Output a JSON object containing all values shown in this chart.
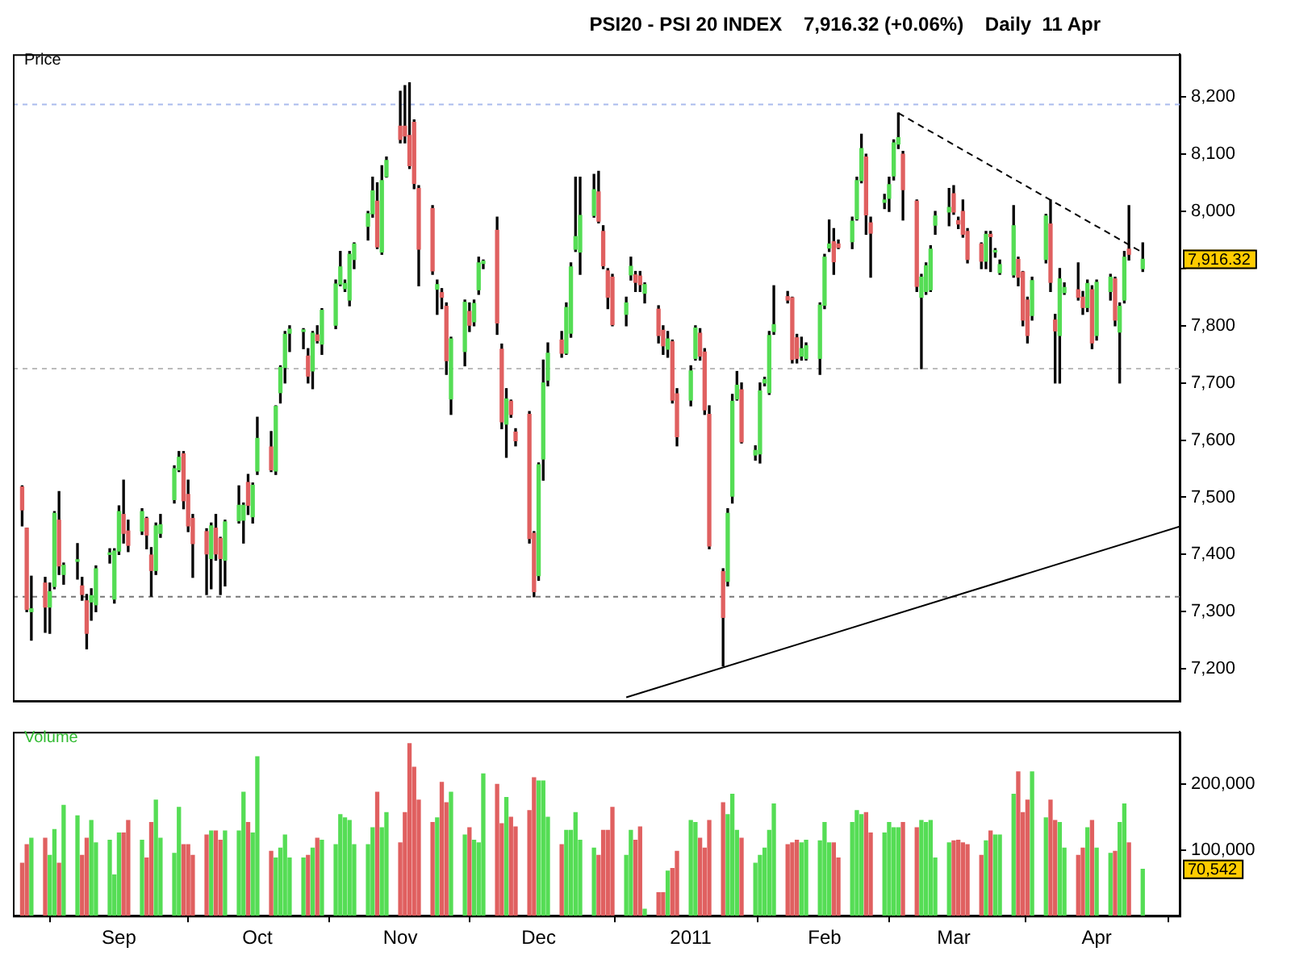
{
  "chart_data": [
    {
      "type": "candlestick",
      "title": "PSI20 - PSI 20 INDEX    7,916.32 (+0.06%)    Daily  11 Apr",
      "ylabel": "Price",
      "x": [
        "2010-08-11",
        "2010-08-12",
        "2010-08-13",
        "2010-08-16",
        "2010-08-17",
        "2010-08-18",
        "2010-08-19",
        "2010-08-20",
        "2010-08-23",
        "2010-08-24",
        "2010-08-25",
        "2010-08-26",
        "2010-08-27",
        "2010-08-30",
        "2010-08-31",
        "2010-09-01",
        "2010-09-02",
        "2010-09-03",
        "2010-09-06",
        "2010-09-07",
        "2010-09-08",
        "2010-09-09",
        "2010-09-10",
        "2010-09-13",
        "2010-09-14",
        "2010-09-15",
        "2010-09-16",
        "2010-09-17",
        "2010-09-20",
        "2010-09-21",
        "2010-09-22",
        "2010-09-23",
        "2010-09-24",
        "2010-09-27",
        "2010-09-28",
        "2010-09-29",
        "2010-09-30",
        "2010-10-01",
        "2010-10-04",
        "2010-10-05",
        "2010-10-06",
        "2010-10-07",
        "2010-10-08",
        "2010-10-11",
        "2010-10-12",
        "2010-10-13",
        "2010-10-14",
        "2010-10-15",
        "2010-10-18",
        "2010-10-19",
        "2010-10-20",
        "2010-10-21",
        "2010-10-22",
        "2010-10-25",
        "2010-10-26",
        "2010-10-27",
        "2010-10-28",
        "2010-10-29",
        "2010-11-01",
        "2010-11-02",
        "2010-11-03",
        "2010-11-04",
        "2010-11-05",
        "2010-11-08",
        "2010-11-09",
        "2010-11-10",
        "2010-11-11",
        "2010-11-12",
        "2010-11-15",
        "2010-11-16",
        "2010-11-17",
        "2010-11-18",
        "2010-11-19",
        "2010-11-22",
        "2010-11-23",
        "2010-11-24",
        "2010-11-25",
        "2010-11-26",
        "2010-11-29",
        "2010-11-30",
        "2010-12-01",
        "2010-12-02",
        "2010-12-03",
        "2010-12-06",
        "2010-12-07",
        "2010-12-08",
        "2010-12-09",
        "2010-12-10",
        "2010-12-13",
        "2010-12-14",
        "2010-12-15",
        "2010-12-16",
        "2010-12-17",
        "2010-12-20",
        "2010-12-21",
        "2010-12-22",
        "2010-12-23",
        "2010-12-24",
        "2010-12-27",
        "2010-12-28",
        "2010-12-29",
        "2010-12-30",
        "2010-12-31",
        "2011-01-03",
        "2011-01-04",
        "2011-01-05",
        "2011-01-06",
        "2011-01-07",
        "2011-01-10",
        "2011-01-11",
        "2011-01-12",
        "2011-01-13",
        "2011-01-14",
        "2011-01-17",
        "2011-01-18",
        "2011-01-19",
        "2011-01-20",
        "2011-01-21",
        "2011-01-24",
        "2011-01-25",
        "2011-01-26",
        "2011-01-27",
        "2011-01-28",
        "2011-01-31",
        "2011-02-01",
        "2011-02-02",
        "2011-02-03",
        "2011-02-04",
        "2011-02-07",
        "2011-02-08",
        "2011-02-09",
        "2011-02-10",
        "2011-02-11",
        "2011-02-14",
        "2011-02-15",
        "2011-02-16",
        "2011-02-17",
        "2011-02-18",
        "2011-02-21",
        "2011-02-22",
        "2011-02-23",
        "2011-02-24",
        "2011-02-25",
        "2011-02-28",
        "2011-03-01",
        "2011-03-02",
        "2011-03-03",
        "2011-03-04",
        "2011-03-07",
        "2011-03-08",
        "2011-03-09",
        "2011-03-10",
        "2011-03-11",
        "2011-03-14",
        "2011-03-15",
        "2011-03-16",
        "2011-03-17",
        "2011-03-18",
        "2011-03-21",
        "2011-03-22",
        "2011-03-23",
        "2011-03-24",
        "2011-03-25",
        "2011-03-28",
        "2011-03-29",
        "2011-03-30",
        "2011-03-31",
        "2011-04-01",
        "2011-04-04",
        "2011-04-05",
        "2011-04-06",
        "2011-04-07",
        "2011-04-08",
        "2011-04-11"
      ],
      "ohlc": [
        [
          7518,
          7520,
          7450,
          7478
        ],
        [
          7446,
          7446,
          7300,
          7304
        ],
        [
          7300,
          7362,
          7250,
          7305
        ],
        [
          7350,
          7360,
          7264,
          7308
        ],
        [
          7308,
          7350,
          7262,
          7335
        ],
        [
          7344,
          7475,
          7340,
          7472
        ],
        [
          7460,
          7510,
          7365,
          7380
        ],
        [
          7365,
          7385,
          7348,
          7381
        ],
        [
          7388,
          7419,
          7357,
          7388
        ],
        [
          7345,
          7360,
          7320,
          7330
        ],
        [
          7319,
          7330,
          7235,
          7262
        ],
        [
          7317,
          7340,
          7285,
          7328
        ],
        [
          7312,
          7380,
          7300,
          7375
        ],
        [
          7400,
          7410,
          7385,
          7402
        ],
        [
          7322,
          7410,
          7315,
          7406
        ],
        [
          7406,
          7485,
          7400,
          7475
        ],
        [
          7470,
          7530,
          7420,
          7437
        ],
        [
          7441,
          7460,
          7405,
          7416
        ],
        [
          7441,
          7480,
          7435,
          7475
        ],
        [
          7463,
          7465,
          7410,
          7434
        ],
        [
          7399,
          7412,
          7327,
          7372
        ],
        [
          7372,
          7455,
          7365,
          7450
        ],
        [
          7437,
          7470,
          7430,
          7452
        ],
        [
          7496,
          7555,
          7490,
          7550
        ],
        [
          7548,
          7580,
          7545,
          7570
        ],
        [
          7576,
          7580,
          7480,
          7494
        ],
        [
          7505,
          7530,
          7440,
          7450
        ],
        [
          7463,
          7470,
          7360,
          7419
        ],
        [
          7440,
          7445,
          7330,
          7401
        ],
        [
          7393,
          7455,
          7340,
          7450
        ],
        [
          7446,
          7470,
          7390,
          7401
        ],
        [
          7428,
          7430,
          7330,
          7393
        ],
        [
          7390,
          7460,
          7345,
          7457
        ],
        [
          7459,
          7520,
          7455,
          7486
        ],
        [
          7460,
          7490,
          7420,
          7486
        ],
        [
          7526,
          7540,
          7470,
          7486
        ],
        [
          7466,
          7525,
          7455,
          7521
        ],
        [
          7546,
          7640,
          7540,
          7603
        ],
        [
          7588,
          7615,
          7545,
          7548
        ],
        [
          7546,
          7660,
          7540,
          7659
        ],
        [
          7683,
          7730,
          7665,
          7727
        ],
        [
          7727,
          7790,
          7700,
          7785
        ],
        [
          7787,
          7800,
          7755,
          7794
        ],
        [
          7790,
          7795,
          7760,
          7792
        ],
        [
          7747,
          7760,
          7700,
          7712
        ],
        [
          7721,
          7790,
          7690,
          7787
        ],
        [
          7784,
          7800,
          7770,
          7774
        ],
        [
          7768,
          7830,
          7750,
          7827
        ],
        [
          7801,
          7880,
          7795,
          7873
        ],
        [
          7873,
          7930,
          7870,
          7903
        ],
        [
          7865,
          7880,
          7860,
          7874
        ],
        [
          7845,
          7930,
          7835,
          7925
        ],
        [
          7916,
          7945,
          7900,
          7943
        ],
        [
          7974,
          8000,
          7950,
          7996
        ],
        [
          7996,
          8060,
          7990,
          8036
        ],
        [
          8018,
          8050,
          7935,
          7938
        ],
        [
          7929,
          8080,
          7925,
          8054
        ],
        [
          8061,
          8095,
          8060,
          8089
        ],
        [
          8149,
          8210,
          8120,
          8126
        ],
        [
          8149,
          8220,
          8120,
          8132
        ],
        [
          8133,
          8225,
          8075,
          8080
        ],
        [
          8156,
          8160,
          8040,
          8049
        ],
        [
          8040,
          8045,
          7870,
          7934
        ],
        [
          8005,
          8010,
          7890,
          7896
        ],
        [
          7864,
          7880,
          7820,
          7872
        ],
        [
          7858,
          7865,
          7830,
          7850
        ],
        [
          7834,
          7840,
          7715,
          7739
        ],
        [
          7672,
          7780,
          7645,
          7777
        ],
        [
          7755,
          7845,
          7730,
          7841
        ],
        [
          7825,
          7840,
          7790,
          7801
        ],
        [
          7807,
          7845,
          7800,
          7839
        ],
        [
          7863,
          7920,
          7855,
          7910
        ],
        [
          7909,
          7915,
          7900,
          7913
        ],
        [
          7967,
          7990,
          7785,
          7805
        ],
        [
          7759,
          7768,
          7620,
          7632
        ],
        [
          7628,
          7690,
          7570,
          7672
        ],
        [
          7668,
          7670,
          7640,
          7645
        ],
        [
          7614,
          7620,
          7590,
          7599
        ],
        [
          7645,
          7650,
          7420,
          7428
        ],
        [
          7437,
          7440,
          7326,
          7335
        ],
        [
          7363,
          7560,
          7355,
          7557
        ],
        [
          7567,
          7740,
          7530,
          7700
        ],
        [
          7705,
          7770,
          7695,
          7752
        ],
        [
          7775,
          7790,
          7745,
          7752
        ],
        [
          7752,
          7840,
          7750,
          7832
        ],
        [
          7787,
          7910,
          7780,
          7903
        ],
        [
          7934,
          8060,
          7930,
          7956
        ],
        [
          7929,
          8060,
          7890,
          7993
        ],
        [
          7993,
          8065,
          7990,
          8038
        ],
        [
          8034,
          8070,
          7980,
          7983
        ],
        [
          7965,
          7975,
          7900,
          7905
        ],
        [
          7896,
          7900,
          7830,
          7850
        ],
        [
          7885,
          7890,
          7800,
          7802
        ],
        [
          7820,
          7850,
          7800,
          7840
        ],
        [
          7889,
          7920,
          7880,
          7904
        ],
        [
          7889,
          7895,
          7860,
          7876
        ],
        [
          7887,
          7895,
          7860,
          7872
        ],
        [
          7857,
          7875,
          7840,
          7872
        ],
        [
          7829,
          7835,
          7770,
          7783
        ],
        [
          7792,
          7800,
          7750,
          7765
        ],
        [
          7759,
          7790,
          7745,
          7777
        ],
        [
          7772,
          7775,
          7665,
          7670
        ],
        [
          7681,
          7690,
          7590,
          7606
        ],
        [
          7670,
          7730,
          7660,
          7721
        ],
        [
          7743,
          7800,
          7740,
          7796
        ],
        [
          7787,
          7795,
          7740,
          7747
        ],
        [
          7754,
          7760,
          7645,
          7653
        ],
        [
          7645,
          7660,
          7410,
          7415
        ],
        [
          7370,
          7375,
          7205,
          7290
        ],
        [
          7353,
          7480,
          7345,
          7472
        ],
        [
          7502,
          7680,
          7490,
          7668
        ],
        [
          7672,
          7720,
          7670,
          7696
        ],
        [
          7688,
          7700,
          7595,
          7597
        ],
        [
          7574,
          7590,
          7565,
          7582
        ],
        [
          7576,
          7700,
          7560,
          7686
        ],
        [
          7700,
          7710,
          7695,
          7706
        ],
        [
          7683,
          7790,
          7680,
          7783
        ],
        [
          7790,
          7870,
          7785,
          7802
        ],
        [
          7851,
          7860,
          7840,
          7845
        ],
        [
          7849,
          7850,
          7735,
          7741
        ],
        [
          7779,
          7785,
          7735,
          7743
        ],
        [
          7747,
          7780,
          7740,
          7760
        ],
        [
          7743,
          7770,
          7740,
          7765
        ],
        [
          7743,
          7840,
          7715,
          7836
        ],
        [
          7836,
          7925,
          7830,
          7920
        ],
        [
          7936,
          7985,
          7930,
          7943
        ],
        [
          7947,
          7970,
          7890,
          7912
        ],
        [
          7943,
          7950,
          7935,
          7937
        ],
        [
          7947,
          7990,
          7935,
          7983
        ],
        [
          7987,
          8060,
          7985,
          8054
        ],
        [
          8054,
          8135,
          8050,
          8110
        ],
        [
          8095,
          8100,
          7960,
          7994
        ],
        [
          7980,
          7990,
          7885,
          7962
        ],
        [
          8016,
          8030,
          8005,
          8020
        ],
        [
          8023,
          8060,
          8000,
          8047
        ],
        [
          8062,
          8125,
          8055,
          8120
        ],
        [
          8118,
          8172,
          8110,
          8129
        ],
        [
          8100,
          8105,
          7985,
          8038
        ],
        [
          8018,
          8020,
          7860,
          7869
        ],
        [
          7850,
          7890,
          7725,
          7885
        ],
        [
          7860,
          7910,
          7855,
          7905
        ],
        [
          7863,
          7940,
          7860,
          7934
        ],
        [
          7976,
          8000,
          7960,
          7992
        ],
        [
          7999,
          8040,
          7975,
          8007
        ],
        [
          8031,
          8045,
          7995,
          7999
        ],
        [
          7984,
          7990,
          7970,
          7978
        ],
        [
          8000,
          8020,
          7955,
          7960
        ],
        [
          7965,
          7970,
          7910,
          7916
        ],
        [
          7943,
          7945,
          7900,
          7913
        ],
        [
          7913,
          7965,
          7900,
          7960
        ],
        [
          7960,
          7965,
          7895,
          7956
        ],
        [
          7929,
          7935,
          7920,
          7929
        ],
        [
          7893,
          7915,
          7890,
          7907
        ],
        [
          7889,
          8010,
          7885,
          7975
        ],
        [
          7916,
          7920,
          7870,
          7885
        ],
        [
          7894,
          7895,
          7800,
          7810
        ],
        [
          7845,
          7850,
          7770,
          7783
        ],
        [
          7818,
          7885,
          7810,
          7879
        ],
        [
          7916,
          7995,
          7910,
          7992
        ],
        [
          7978,
          8020,
          7860,
          7876
        ],
        [
          7810,
          7820,
          7700,
          7791
        ],
        [
          7783,
          7900,
          7700,
          7882
        ],
        [
          7858,
          7875,
          7855,
          7867
        ],
        [
          7863,
          7910,
          7845,
          7850
        ],
        [
          7850,
          7860,
          7820,
          7832
        ],
        [
          7832,
          7880,
          7825,
          7874
        ],
        [
          7863,
          7870,
          7760,
          7770
        ],
        [
          7783,
          7880,
          7775,
          7876
        ],
        [
          7860,
          7890,
          7845,
          7885
        ],
        [
          7882,
          7885,
          7800,
          7810
        ],
        [
          7789,
          7840,
          7700,
          7834
        ],
        [
          7845,
          7930,
          7840,
          7920
        ],
        [
          7934,
          8010,
          7915,
          7925
        ],
        [
          7900,
          7945,
          7895,
          7916.32
        ]
      ],
      "colors": [
        "#e06060",
        "#e06060",
        "#55dd55",
        "#e06060",
        "#55dd55",
        "#55dd55",
        "#e06060",
        "#55dd55",
        "#55dd55",
        "#e06060",
        "#e06060",
        "#55dd55",
        "#55dd55",
        "#55dd55",
        "#55dd55",
        "#55dd55",
        "#e06060",
        "#e06060",
        "#55dd55",
        "#e06060",
        "#e06060",
        "#55dd55",
        "#55dd55",
        "#55dd55",
        "#55dd55",
        "#e06060",
        "#e06060",
        "#e06060",
        "#e06060",
        "#55dd55",
        "#e06060",
        "#e06060",
        "#55dd55",
        "#55dd55",
        "#55dd55",
        "#e06060",
        "#55dd55",
        "#55dd55",
        "#e06060",
        "#55dd55",
        "#55dd55",
        "#55dd55",
        "#55dd55",
        "#55dd55",
        "#e06060",
        "#55dd55",
        "#e06060",
        "#55dd55",
        "#55dd55",
        "#55dd55",
        "#55dd55",
        "#55dd55",
        "#55dd55",
        "#55dd55",
        "#55dd55",
        "#e06060",
        "#55dd55",
        "#55dd55",
        "#e06060",
        "#e06060",
        "#e06060",
        "#e06060",
        "#e06060",
        "#e06060",
        "#55dd55",
        "#e06060",
        "#e06060",
        "#55dd55",
        "#55dd55",
        "#e06060",
        "#55dd55",
        "#55dd55",
        "#55dd55",
        "#e06060",
        "#e06060",
        "#55dd55",
        "#e06060",
        "#e06060",
        "#e06060",
        "#e06060",
        "#55dd55",
        "#55dd55",
        "#55dd55",
        "#e06060",
        "#55dd55",
        "#55dd55",
        "#55dd55",
        "#55dd55",
        "#55dd55",
        "#e06060",
        "#e06060",
        "#e06060",
        "#e06060",
        "#55dd55",
        "#55dd55",
        "#e06060",
        "#e06060",
        "#55dd55",
        "#e06060",
        "#e06060",
        "#55dd55",
        "#e06060",
        "#e06060",
        "#55dd55",
        "#55dd55",
        "#e06060",
        "#e06060",
        "#e06060",
        "#e06060",
        "#55dd55",
        "#55dd55",
        "#55dd55",
        "#e06060",
        "#55dd55",
        "#55dd55",
        "#55dd55",
        "#55dd55",
        "#55dd55",
        "#e06060",
        "#e06060",
        "#e06060",
        "#55dd55",
        "#55dd55",
        "#55dd55",
        "#55dd55",
        "#55dd55",
        "#e06060",
        "#e06060",
        "#55dd55",
        "#55dd55",
        "#55dd55",
        "#e06060",
        "#e06060",
        "#55dd55",
        "#55dd55",
        "#55dd55",
        "#55dd55",
        "#e06060",
        "#e06060",
        "#55dd55",
        "#55dd55",
        "#55dd55",
        "#55dd55",
        "#55dd55",
        "#e06060",
        "#e06060",
        "#e06060",
        "#e06060",
        "#e06060",
        "#55dd55",
        "#e06060",
        "#55dd55",
        "#55dd55",
        "#55dd55",
        "#e06060",
        "#e06060",
        "#e06060",
        "#55dd55",
        "#55dd55",
        "#e06060",
        "#e06060",
        "#55dd55",
        "#55dd55",
        "#e06060",
        "#e06060",
        "#55dd55",
        "#e06060",
        "#55dd55",
        "#55dd55",
        "#e06060",
        "#55dd55",
        "#55dd55",
        "#e06060",
        "#55dd55"
      ],
      "series": [
        {
          "type": "line",
          "x": [
            "2010-12-20",
            "2011-04-19"
          ],
          "values": [
            7150,
            7449
          ],
          "color": "#000000",
          "line_style": "solid"
        },
        {
          "type": "line",
          "x": [
            "2011-02-17",
            "2011-04-11"
          ],
          "values": [
            8172,
            7928
          ],
          "color": "#000000",
          "line_style": "dashed"
        }
      ],
      "ref_lines": [
        {
          "axis": "y",
          "value": 8187,
          "color": "#aabbee",
          "line_style": "dashed"
        },
        {
          "axis": "y",
          "value": 7725,
          "color": "#bbbbbb",
          "line_style": "dashed"
        },
        {
          "axis": "y",
          "value": 7326,
          "color": "#777777",
          "line_style": "dashed"
        }
      ],
      "annotations": [
        {
          "text": "7,916.32",
          "x": "2011-04-11",
          "y": 7916.32
        }
      ],
      "xlim": [
        "2010-08-09",
        "2011-04-19"
      ],
      "ylim": [
        7144,
        8275
      ],
      "yticks": [
        {
          "value": 7200,
          "label": "7,200"
        },
        {
          "value": 7300,
          "label": "7,300"
        },
        {
          "value": 7400,
          "label": "7,400"
        },
        {
          "value": 7500,
          "label": "7,500"
        },
        {
          "value": 7600,
          "label": "7,600"
        },
        {
          "value": 7700,
          "label": "7,700"
        },
        {
          "value": 7800,
          "label": "7,800"
        },
        {
          "value": 7900,
          "label": null
        },
        {
          "value": 8000,
          "label": "8,000"
        },
        {
          "value": 8100,
          "label": "8,100"
        },
        {
          "value": 8200,
          "label": "8,200"
        }
      ],
      "tick_labels": "y"
    },
    {
      "type": "bar",
      "ylabel": "Volume",
      "x": [
        "2010-08-11",
        "2010-08-12",
        "2010-08-13",
        "2010-08-16",
        "2010-08-17",
        "2010-08-18",
        "2010-08-19",
        "2010-08-20",
        "2010-08-23",
        "2010-08-24",
        "2010-08-25",
        "2010-08-26",
        "2010-08-27",
        "2010-08-30",
        "2010-08-31",
        "2010-09-01",
        "2010-09-02",
        "2010-09-03",
        "2010-09-06",
        "2010-09-07",
        "2010-09-08",
        "2010-09-09",
        "2010-09-10",
        "2010-09-13",
        "2010-09-14",
        "2010-09-15",
        "2010-09-16",
        "2010-09-17",
        "2010-09-20",
        "2010-09-21",
        "2010-09-22",
        "2010-09-23",
        "2010-09-24",
        "2010-09-27",
        "2010-09-28",
        "2010-09-29",
        "2010-09-30",
        "2010-10-01",
        "2010-10-04",
        "2010-10-05",
        "2010-10-06",
        "2010-10-07",
        "2010-10-08",
        "2010-10-11",
        "2010-10-12",
        "2010-10-13",
        "2010-10-14",
        "2010-10-15",
        "2010-10-18",
        "2010-10-19",
        "2010-10-20",
        "2010-10-21",
        "2010-10-22",
        "2010-10-25",
        "2010-10-26",
        "2010-10-27",
        "2010-10-28",
        "2010-10-29",
        "2010-11-01",
        "2010-11-02",
        "2010-11-03",
        "2010-11-04",
        "2010-11-05",
        "2010-11-08",
        "2010-11-09",
        "2010-11-10",
        "2010-11-11",
        "2010-11-12",
        "2010-11-15",
        "2010-11-16",
        "2010-11-17",
        "2010-11-18",
        "2010-11-19",
        "2010-11-22",
        "2010-11-23",
        "2010-11-24",
        "2010-11-25",
        "2010-11-26",
        "2010-11-29",
        "2010-11-30",
        "2010-12-01",
        "2010-12-02",
        "2010-12-03",
        "2010-12-06",
        "2010-12-07",
        "2010-12-08",
        "2010-12-09",
        "2010-12-10",
        "2010-12-13",
        "2010-12-14",
        "2010-12-15",
        "2010-12-16",
        "2010-12-17",
        "2010-12-20",
        "2010-12-21",
        "2010-12-22",
        "2010-12-23",
        "2010-12-24",
        "2010-12-27",
        "2010-12-28",
        "2010-12-29",
        "2010-12-30",
        "2010-12-31",
        "2011-01-03",
        "2011-01-04",
        "2011-01-05",
        "2011-01-06",
        "2011-01-07",
        "2011-01-10",
        "2011-01-11",
        "2011-01-12",
        "2011-01-13",
        "2011-01-14",
        "2011-01-17",
        "2011-01-18",
        "2011-01-19",
        "2011-01-20",
        "2011-01-21",
        "2011-01-24",
        "2011-01-25",
        "2011-01-26",
        "2011-01-27",
        "2011-01-28",
        "2011-01-31",
        "2011-02-01",
        "2011-02-02",
        "2011-02-03",
        "2011-02-04",
        "2011-02-07",
        "2011-02-08",
        "2011-02-09",
        "2011-02-10",
        "2011-02-11",
        "2011-02-14",
        "2011-02-15",
        "2011-02-16",
        "2011-02-17",
        "2011-02-18",
        "2011-02-21",
        "2011-02-22",
        "2011-02-23",
        "2011-02-24",
        "2011-02-25",
        "2011-02-28",
        "2011-03-01",
        "2011-03-02",
        "2011-03-03",
        "2011-03-04",
        "2011-03-07",
        "2011-03-08",
        "2011-03-09",
        "2011-03-10",
        "2011-03-11",
        "2011-03-14",
        "2011-03-15",
        "2011-03-16",
        "2011-03-17",
        "2011-03-18",
        "2011-03-21",
        "2011-03-22",
        "2011-03-23",
        "2011-03-24",
        "2011-03-25",
        "2011-03-28",
        "2011-03-29",
        "2011-03-30",
        "2011-03-31",
        "2011-04-01",
        "2011-04-04",
        "2011-04-05",
        "2011-04-06",
        "2011-04-07",
        "2011-04-08",
        "2011-04-11"
      ],
      "values": [
        80000,
        108000,
        118000,
        118000,
        92000,
        131000,
        80000,
        168000,
        152000,
        92000,
        118000,
        145000,
        111000,
        115000,
        62000,
        126000,
        126000,
        145000,
        115000,
        88000,
        142000,
        176000,
        118000,
        95000,
        165000,
        108000,
        108000,
        92000,
        123000,
        129000,
        129000,
        115000,
        129000,
        129000,
        188000,
        142000,
        126000,
        242000,
        98000,
        88000,
        103000,
        123000,
        88000,
        88000,
        92000,
        103000,
        118000,
        115000,
        108000,
        154000,
        149000,
        145000,
        108000,
        108000,
        134000,
        188000,
        134000,
        157000,
        111000,
        157000,
        262000,
        226000,
        176000,
        142000,
        149000,
        203000,
        172000,
        188000,
        123000,
        134000,
        115000,
        111000,
        216000,
        200000,
        140000,
        180000,
        150000,
        135000,
        160000,
        210000,
        205000,
        205000,
        150000,
        108000,
        130000,
        130000,
        157000,
        115000,
        103000,
        92000,
        130000,
        130000,
        165000,
        92000,
        130000,
        115000,
        135000,
        10000,
        35000,
        35000,
        68000,
        72000,
        98000,
        145000,
        142000,
        118000,
        103000,
        145000,
        172000,
        154000,
        185000,
        130000,
        118000,
        80000,
        92000,
        103000,
        130000,
        170000,
        108000,
        111000,
        115000,
        111000,
        115000,
        114000,
        142000,
        111000,
        111000,
        88000,
        142000,
        160000,
        154000,
        157000,
        126000,
        126000,
        142000,
        134000,
        134000,
        142000,
        134000,
        145000,
        142000,
        145000,
        88000,
        111000,
        114000,
        115000,
        111000,
        108000,
        92000,
        114000,
        129000,
        123000,
        123000,
        185000,
        219000,
        157000,
        176000,
        219000,
        149000,
        176000,
        145000,
        142000,
        103000,
        92000,
        103000,
        134000,
        145000,
        103000,
        95000,
        98000,
        142000,
        170000,
        111000,
        70542
      ],
      "colors": [
        "#e06060",
        "#e06060",
        "#55dd55",
        "#e06060",
        "#55dd55",
        "#55dd55",
        "#e06060",
        "#55dd55",
        "#55dd55",
        "#e06060",
        "#e06060",
        "#55dd55",
        "#55dd55",
        "#55dd55",
        "#55dd55",
        "#55dd55",
        "#e06060",
        "#e06060",
        "#55dd55",
        "#e06060",
        "#e06060",
        "#55dd55",
        "#55dd55",
        "#55dd55",
        "#55dd55",
        "#e06060",
        "#e06060",
        "#e06060",
        "#e06060",
        "#55dd55",
        "#e06060",
        "#e06060",
        "#55dd55",
        "#55dd55",
        "#55dd55",
        "#e06060",
        "#55dd55",
        "#55dd55",
        "#e06060",
        "#55dd55",
        "#55dd55",
        "#55dd55",
        "#55dd55",
        "#55dd55",
        "#e06060",
        "#55dd55",
        "#e06060",
        "#55dd55",
        "#55dd55",
        "#55dd55",
        "#55dd55",
        "#55dd55",
        "#55dd55",
        "#55dd55",
        "#55dd55",
        "#e06060",
        "#55dd55",
        "#55dd55",
        "#e06060",
        "#e06060",
        "#e06060",
        "#e06060",
        "#e06060",
        "#e06060",
        "#55dd55",
        "#e06060",
        "#e06060",
        "#55dd55",
        "#55dd55",
        "#e06060",
        "#55dd55",
        "#55dd55",
        "#55dd55",
        "#e06060",
        "#e06060",
        "#55dd55",
        "#e06060",
        "#e06060",
        "#e06060",
        "#e06060",
        "#55dd55",
        "#55dd55",
        "#55dd55",
        "#e06060",
        "#55dd55",
        "#55dd55",
        "#55dd55",
        "#55dd55",
        "#55dd55",
        "#e06060",
        "#e06060",
        "#e06060",
        "#e06060",
        "#55dd55",
        "#55dd55",
        "#e06060",
        "#e06060",
        "#55dd55",
        "#e06060",
        "#e06060",
        "#55dd55",
        "#e06060",
        "#e06060",
        "#55dd55",
        "#55dd55",
        "#e06060",
        "#e06060",
        "#e06060",
        "#e06060",
        "#55dd55",
        "#55dd55",
        "#55dd55",
        "#e06060",
        "#55dd55",
        "#55dd55",
        "#55dd55",
        "#55dd55",
        "#55dd55",
        "#e06060",
        "#e06060",
        "#e06060",
        "#55dd55",
        "#55dd55",
        "#55dd55",
        "#55dd55",
        "#55dd55",
        "#e06060",
        "#e06060",
        "#55dd55",
        "#55dd55",
        "#55dd55",
        "#e06060",
        "#e06060",
        "#55dd55",
        "#55dd55",
        "#55dd55",
        "#55dd55",
        "#e06060",
        "#e06060",
        "#55dd55",
        "#55dd55",
        "#55dd55",
        "#55dd55",
        "#55dd55",
        "#e06060",
        "#e06060",
        "#e06060",
        "#e06060",
        "#e06060",
        "#55dd55",
        "#e06060",
        "#55dd55",
        "#55dd55",
        "#55dd55",
        "#e06060",
        "#e06060",
        "#e06060",
        "#55dd55",
        "#55dd55",
        "#e06060",
        "#e06060",
        "#55dd55",
        "#55dd55",
        "#e06060",
        "#e06060",
        "#55dd55",
        "#e06060",
        "#55dd55",
        "#55dd55",
        "#e06060",
        "#55dd55",
        "#55dd55",
        "#e06060",
        "#55dd55"
      ],
      "annotations": [
        {
          "text": "70,542",
          "x": "2011-04-11",
          "y": 70542
        }
      ],
      "xlim": [
        "2010-08-09",
        "2011-04-19"
      ],
      "xticks": [
        {
          "value": "2010-09-01",
          "label": "Sep"
        },
        {
          "value": "2010-10-01",
          "label": "Oct"
        },
        {
          "value": "2010-11-01",
          "label": "Nov"
        },
        {
          "value": "2010-12-01",
          "label": "Dec"
        },
        {
          "value": "2011-01-03",
          "label": "2011"
        },
        {
          "value": "2011-02-01",
          "label": "Feb"
        },
        {
          "value": "2011-03-01",
          "label": "Mar"
        },
        {
          "value": "2011-04-01",
          "label": "Apr"
        }
      ],
      "ylim": [
        0,
        280000
      ],
      "yticks": [
        {
          "value": 100000,
          "label": "100,000"
        },
        {
          "value": 200000,
          "label": "200,000"
        }
      ]
    }
  ]
}
